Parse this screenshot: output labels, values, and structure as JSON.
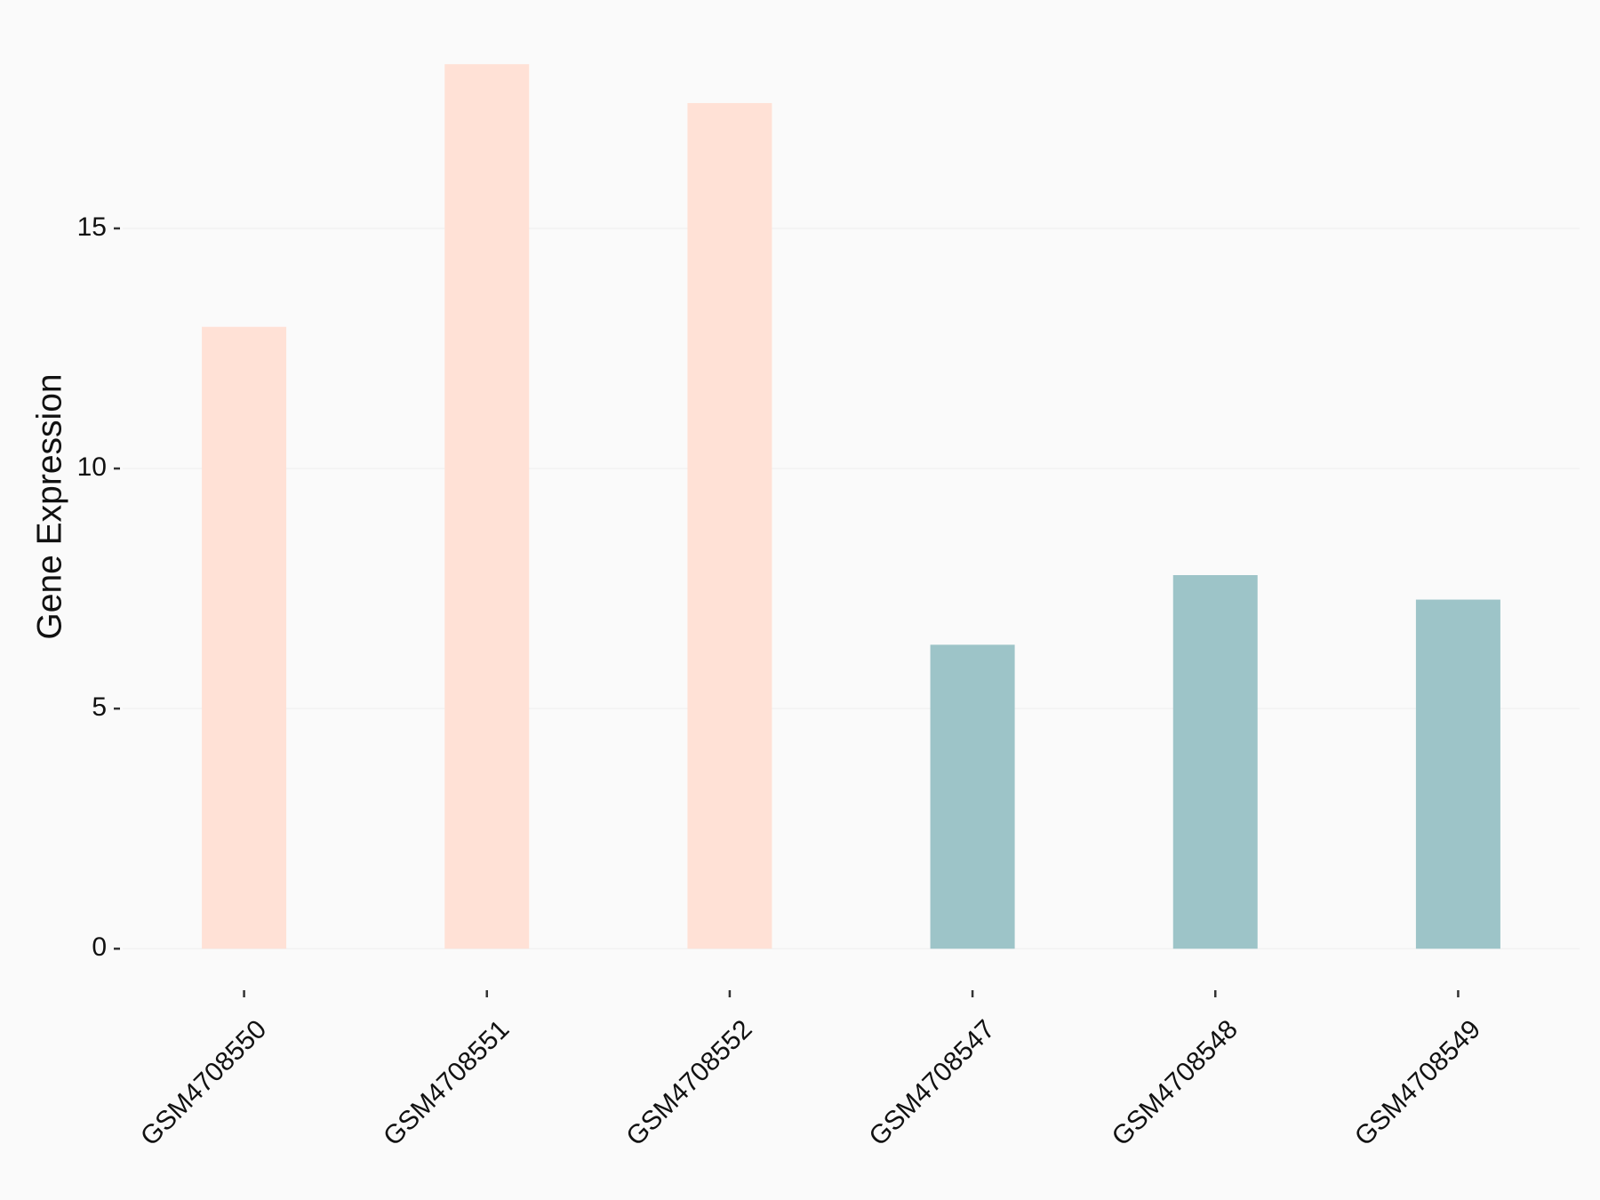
{
  "chart_data": {
    "type": "bar",
    "y_label": "Gene Expression",
    "categories": [
      "GSM4708550",
      "GSM4708551",
      "GSM4708552",
      "GSM4708547",
      "GSM4708548",
      "GSM4708549"
    ],
    "values": [
      12.95,
      18.42,
      17.61,
      6.33,
      7.78,
      7.27
    ],
    "colors": [
      "#ffe1d6",
      "#ffe1d6",
      "#ffe1d6",
      "#9dc4c8",
      "#9dc4c8",
      "#9dc4c8"
    ],
    "ylim": [
      -0.92,
      19.34
    ],
    "yticks": [
      0,
      5,
      10,
      15
    ],
    "grid": true
  }
}
